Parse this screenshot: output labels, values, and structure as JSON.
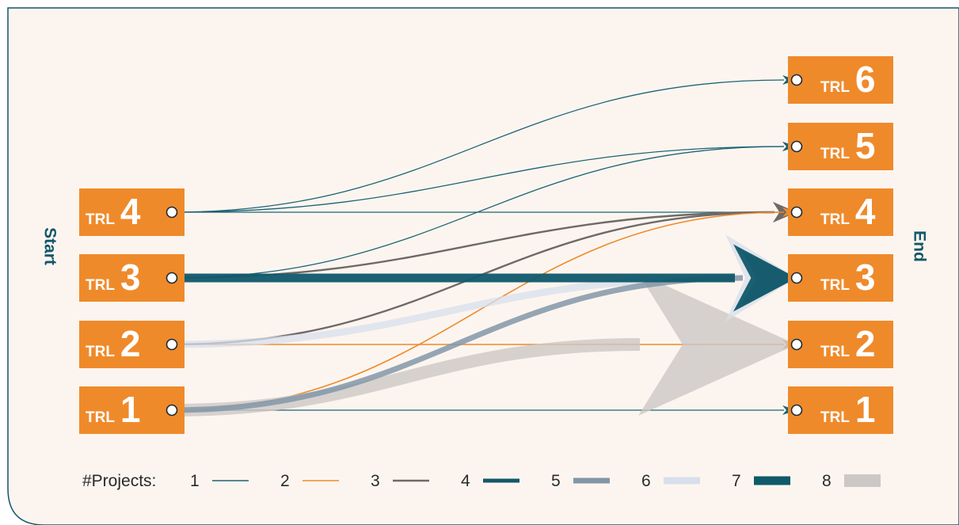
{
  "side_labels": {
    "start": "Start",
    "end": "End"
  },
  "colors": {
    "panel_bg": "#fcf5ef",
    "panel_border": "#13576a",
    "box": "#ef8a2b",
    "box_text": "#ffffff",
    "side_label": "#13576a"
  },
  "box_prefix": "TRL",
  "start_levels": [
    "4",
    "3",
    "2",
    "1"
  ],
  "end_levels": [
    "6",
    "5",
    "4",
    "3",
    "2",
    "1"
  ],
  "legend": {
    "label": "#Projects:",
    "items": [
      {
        "count": "1",
        "color": "#1c6375"
      },
      {
        "count": "2",
        "color": "#ee8a2c"
      },
      {
        "count": "3",
        "color": "#6e6a67"
      },
      {
        "count": "4",
        "color": "#13576a"
      },
      {
        "count": "5",
        "color": "#8296a8"
      },
      {
        "count": "6",
        "color": "#d8dfec"
      },
      {
        "count": "7",
        "color": "#10596b"
      },
      {
        "count": "8",
        "color": "#cdc8c6"
      }
    ]
  },
  "transitions": [
    {
      "from": "1",
      "to": "1",
      "projects": 1
    },
    {
      "from": "2",
      "to": "2",
      "projects": 2
    },
    {
      "from": "4",
      "to": "4",
      "projects": 1
    },
    {
      "from": "4",
      "to": "5",
      "projects": 1
    },
    {
      "from": "4",
      "to": "6",
      "projects": 1
    },
    {
      "from": "3",
      "to": "5",
      "projects": 1
    },
    {
      "from": "3",
      "to": "4",
      "projects": 3
    },
    {
      "from": "2",
      "to": "4",
      "projects": 3
    },
    {
      "from": "1",
      "to": "4",
      "projects": 2
    },
    {
      "from": "1",
      "to": "2",
      "projects": 8
    },
    {
      "from": "2",
      "to": "3",
      "projects": 6
    },
    {
      "from": "1",
      "to": "3",
      "projects": 5
    },
    {
      "from": "3",
      "to": "3",
      "projects": 7
    }
  ]
}
